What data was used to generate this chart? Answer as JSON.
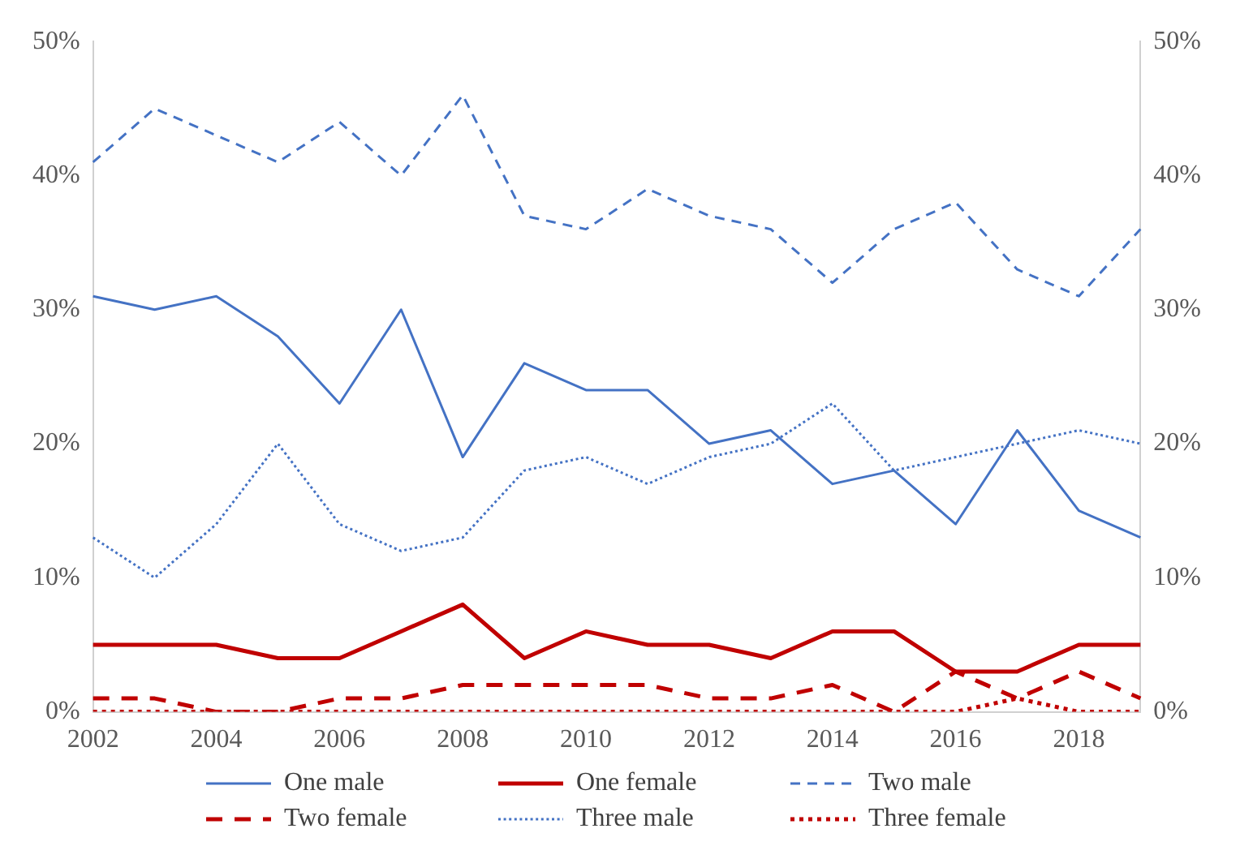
{
  "chart_data": {
    "type": "line",
    "categories": [
      "2002",
      null,
      "2004",
      null,
      "2006",
      null,
      "2008",
      null,
      "2010",
      null,
      "2012",
      null,
      "2014",
      null,
      "2016",
      null,
      "2018",
      null
    ],
    "series": [
      {
        "name": "One male",
        "color": "#4472c4",
        "line_style": "solid",
        "values": [
          31,
          30,
          31,
          28,
          23,
          30,
          19,
          26,
          24,
          24,
          20,
          21,
          17,
          18,
          14,
          21,
          15,
          13
        ]
      },
      {
        "name": "One female",
        "color": "#c00000",
        "line_style": "solid",
        "values": [
          5,
          5,
          5,
          4,
          4,
          6,
          8,
          4,
          6,
          5,
          5,
          4,
          6,
          6,
          3,
          3,
          5,
          5
        ]
      },
      {
        "name": "Two male",
        "color": "#4472c4",
        "line_style": "dashed",
        "values": [
          41,
          45,
          43,
          41,
          44,
          40,
          46,
          37,
          36,
          39,
          37,
          36,
          32,
          36,
          38,
          33,
          31,
          36
        ]
      },
      {
        "name": "Two female",
        "color": "#c00000",
        "line_style": "dashed",
        "values": [
          1,
          1,
          0,
          0,
          1,
          1,
          2,
          2,
          2,
          2,
          1,
          1,
          2,
          0,
          3,
          1,
          3,
          1
        ]
      },
      {
        "name": "Three male",
        "color": "#4472c4",
        "line_style": "dotted",
        "values": [
          13,
          10,
          14,
          20,
          14,
          12,
          13,
          18,
          19,
          17,
          19,
          20,
          23,
          18,
          19,
          20,
          21,
          20
        ]
      },
      {
        "name": "Three female",
        "color": "#c00000",
        "line_style": "dotted",
        "values": [
          0,
          0,
          0,
          0,
          0,
          0,
          0,
          0,
          0,
          0,
          0,
          0,
          0,
          0,
          0,
          1,
          0,
          0
        ]
      }
    ],
    "ylim": [
      0,
      50
    ],
    "yticks": [
      {
        "value": 0,
        "label": "0%"
      },
      {
        "value": 10,
        "label": "10%"
      },
      {
        "value": 20,
        "label": "20%"
      },
      {
        "value": 30,
        "label": "30%"
      },
      {
        "value": 40,
        "label": "40%"
      },
      {
        "value": 50,
        "label": "50%"
      }
    ],
    "y2lim": [
      0,
      50
    ],
    "y2ticks": [
      {
        "value": 0,
        "label": "0%"
      },
      {
        "value": 10,
        "label": "10%"
      },
      {
        "value": 20,
        "label": "20%"
      },
      {
        "value": 30,
        "label": "30%"
      },
      {
        "value": 40,
        "label": "40%"
      },
      {
        "value": 50,
        "label": "50%"
      }
    ],
    "grid": false,
    "legend": "bottom",
    "marker": "none"
  }
}
